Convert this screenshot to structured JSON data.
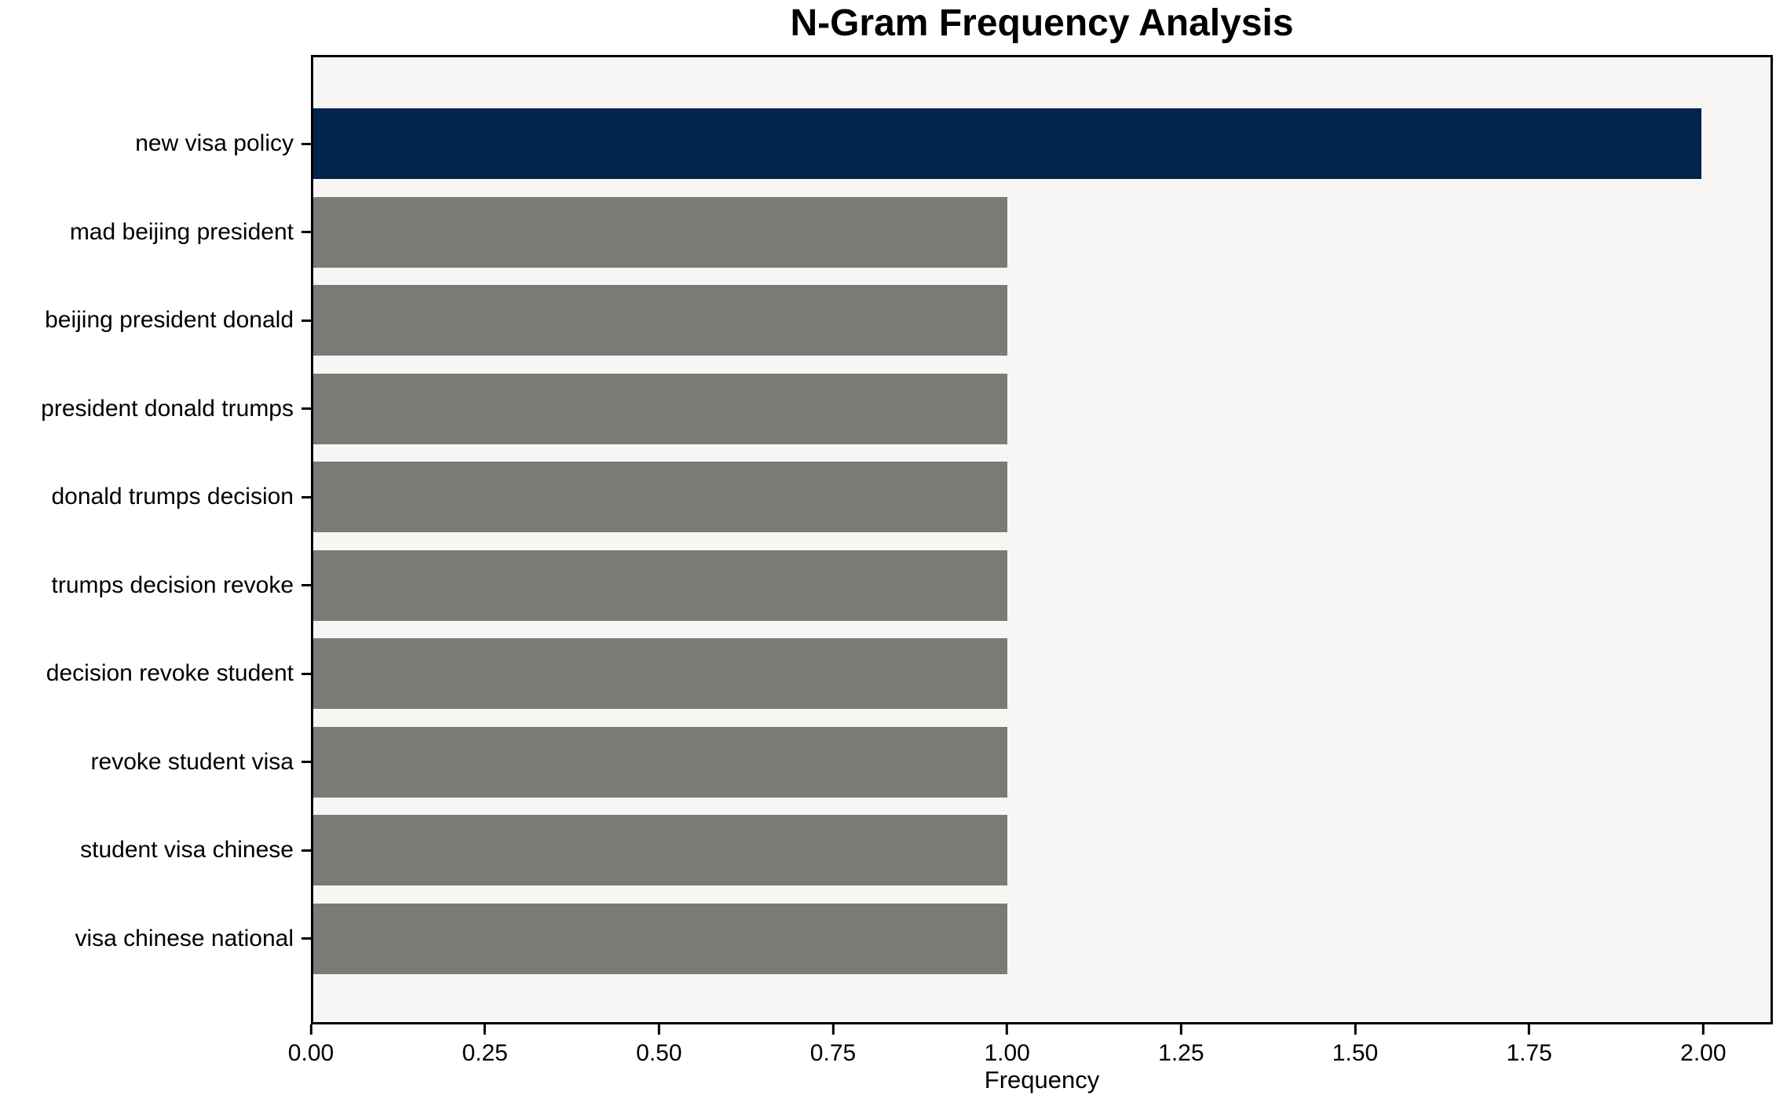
{
  "chart_data": {
    "type": "bar",
    "orientation": "horizontal",
    "title": "N-Gram Frequency Analysis",
    "xlabel": "Frequency",
    "ylabel": "",
    "categories": [
      "new visa policy",
      "mad beijing president",
      "beijing president donald",
      "president donald trumps",
      "donald trumps decision",
      "trumps decision revoke",
      "decision revoke student",
      "revoke student visa",
      "student visa chinese",
      "visa chinese national"
    ],
    "values": [
      2,
      1,
      1,
      1,
      1,
      1,
      1,
      1,
      1,
      1
    ],
    "highlight_index": 0,
    "xlim": [
      0,
      2.1
    ],
    "xtick_values": [
      0,
      0.25,
      0.5,
      0.75,
      1.0,
      1.25,
      1.5,
      1.75,
      2.0
    ],
    "xtick_labels": [
      "0.00",
      "0.25",
      "0.50",
      "0.75",
      "1.00",
      "1.25",
      "1.50",
      "1.75",
      "2.00"
    ],
    "grid": false,
    "legend": "none",
    "bar_fraction": 0.8,
    "colors": {
      "highlight_bar": "#02234a",
      "default_bar": "#7b7a76",
      "plot_background": "#f7f6f4",
      "figure_background": "#ffffff",
      "axis": "#000000",
      "text": "#000000"
    }
  }
}
